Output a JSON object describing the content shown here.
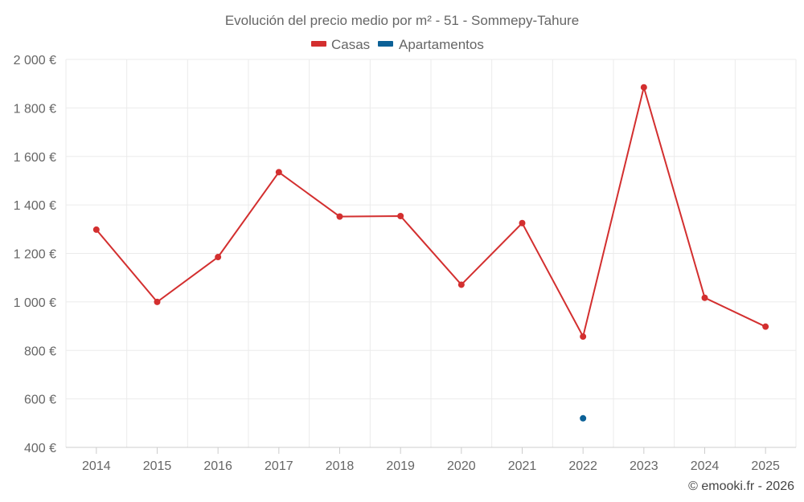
{
  "chart_data": {
    "type": "line",
    "title": "Evolución del precio medio por m² - 51 - Sommepy-Tahure",
    "categories": [
      "2014",
      "2015",
      "2016",
      "2017",
      "2018",
      "2019",
      "2020",
      "2021",
      "2022",
      "2023",
      "2024",
      "2025"
    ],
    "ylim": [
      400,
      2000
    ],
    "yticks": [
      400,
      600,
      800,
      1000,
      1200,
      1400,
      1600,
      1800,
      2000
    ],
    "ytick_labels": [
      "400 €",
      "600 €",
      "800 €",
      "1 000 €",
      "1 200 €",
      "1 400 €",
      "1 600 €",
      "1 800 €",
      "2 000 €"
    ],
    "grid": true,
    "legend_position": "top-center",
    "series": [
      {
        "name": "Casas",
        "color": "#d32f2f",
        "values": [
          1298,
          1000,
          1185,
          1535,
          1352,
          1354,
          1071,
          1325,
          857,
          1885,
          1017,
          898
        ]
      },
      {
        "name": "Apartamentos",
        "color": "#0c6197",
        "values": [
          null,
          null,
          null,
          null,
          null,
          null,
          null,
          null,
          520,
          null,
          null,
          null
        ]
      }
    ]
  },
  "credit": "© emooki.fr - 2026"
}
